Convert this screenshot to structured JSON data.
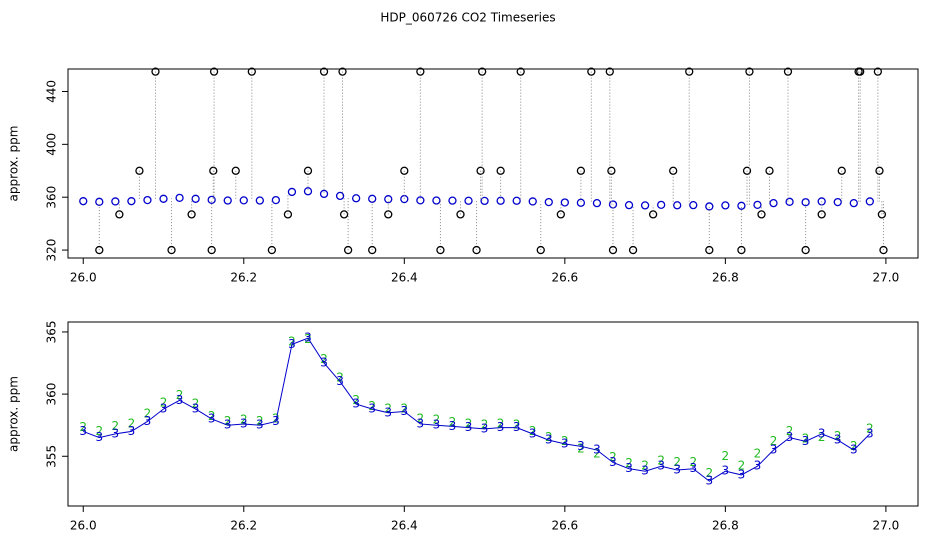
{
  "chart_data": [
    {
      "type": "scatter",
      "title": "HDP_060726  CO2 Timeseries",
      "ylabel": "approx. ppm",
      "xlim": [
        25.981,
        27.04
      ],
      "ylim": [
        314,
        457
      ],
      "xticks": [
        {
          "value": 26.0,
          "label": "26.0"
        },
        {
          "value": 26.2,
          "label": "26.2"
        },
        {
          "value": 26.4,
          "label": "26.4"
        },
        {
          "value": 26.6,
          "label": "26.6"
        },
        {
          "value": 26.8,
          "label": "26.8"
        },
        {
          "value": 27.0,
          "label": "27.0"
        }
      ],
      "yticks": [
        320,
        360,
        400,
        440
      ],
      "series": [
        {
          "color": "#0000cc",
          "marker": "circle",
          "x": [
            26.0,
            26.02,
            26.04,
            26.06,
            26.08,
            26.1,
            26.12,
            26.14,
            26.16,
            26.18,
            26.2,
            26.22,
            26.24,
            26.26,
            26.28,
            26.3,
            26.32,
            26.34,
            26.36,
            26.38,
            26.4,
            26.42,
            26.44,
            26.46,
            26.48,
            26.5,
            26.52,
            26.54,
            26.56,
            26.58,
            26.6,
            26.62,
            26.64,
            26.66,
            26.68,
            26.7,
            26.72,
            26.74,
            26.76,
            26.78,
            26.8,
            26.82,
            26.84,
            26.86,
            26.88,
            26.9,
            26.92,
            26.94,
            26.96,
            26.98
          ],
          "values": [
            357,
            356.5,
            356.8,
            357,
            357.8,
            358.8,
            359.5,
            358.8,
            358,
            357.5,
            357.6,
            357.5,
            357.8,
            364,
            364.5,
            362.5,
            361,
            359.2,
            358.8,
            358.5,
            358.6,
            357.6,
            357.5,
            357.4,
            357.3,
            357.2,
            357.3,
            357.3,
            356.8,
            356.3,
            356,
            355.8,
            355.5,
            354.5,
            354,
            353.8,
            354.2,
            353.9,
            354,
            353,
            353.8,
            353.5,
            354.2,
            355.5,
            356.5,
            356.2,
            356.8,
            356.3,
            355.5,
            356.8
          ]
        },
        {
          "color": "#000000",
          "marker": "circle",
          "drop_lines": "#888888",
          "x": [
            26.02,
            26.045,
            26.07,
            26.09,
            26.11,
            26.135,
            26.16,
            26.162,
            26.163,
            26.19,
            26.21,
            26.235,
            26.255,
            26.28,
            26.3,
            26.323,
            26.325,
            26.33,
            26.36,
            26.38,
            26.4,
            26.42,
            26.445,
            26.47,
            26.49,
            26.495,
            26.497,
            26.52,
            26.545,
            26.57,
            26.595,
            26.62,
            26.633,
            26.656,
            26.658,
            26.66,
            26.685,
            26.71,
            26.735,
            26.755,
            26.78,
            26.82,
            26.827,
            26.83,
            26.845,
            26.855,
            26.878,
            26.9,
            26.92,
            26.945,
            26.966,
            26.968,
            26.99,
            26.992,
            26.995,
            26.997
          ],
          "values": [
            320,
            347,
            380,
            455,
            320,
            347,
            320,
            380,
            455,
            380,
            455,
            320,
            347,
            380,
            455,
            455,
            347,
            320,
            320,
            347,
            380,
            455,
            320,
            347,
            320,
            380,
            455,
            380,
            455,
            320,
            347,
            380,
            455,
            455,
            380,
            320,
            320,
            347,
            380,
            455,
            320,
            320,
            380,
            455,
            347,
            380,
            455,
            320,
            347,
            380,
            455,
            455,
            455,
            380,
            347,
            320
          ]
        }
      ]
    },
    {
      "type": "scatter",
      "ylabel": "approx. ppm",
      "xlim": [
        25.981,
        27.04
      ],
      "ylim": [
        351,
        365.8
      ],
      "xticks": [
        {
          "value": 26.0,
          "label": "26.0"
        },
        {
          "value": 26.2,
          "label": "26.2"
        },
        {
          "value": 26.4,
          "label": "26.4"
        },
        {
          "value": 26.6,
          "label": "26.6"
        },
        {
          "value": 26.8,
          "label": "26.8"
        },
        {
          "value": 27.0,
          "label": "27.0"
        }
      ],
      "yticks": [
        355,
        360,
        365
      ],
      "series": [
        {
          "color": "#22bb22",
          "marker": "2",
          "x": [
            26.0,
            26.02,
            26.04,
            26.06,
            26.08,
            26.1,
            26.12,
            26.14,
            26.16,
            26.18,
            26.2,
            26.22,
            26.24,
            26.26,
            26.28,
            26.3,
            26.32,
            26.34,
            26.36,
            26.38,
            26.4,
            26.42,
            26.44,
            26.46,
            26.48,
            26.5,
            26.52,
            26.54,
            26.56,
            26.58,
            26.6,
            26.62,
            26.64,
            26.66,
            26.68,
            26.7,
            26.72,
            26.74,
            26.76,
            26.78,
            26.8,
            26.82,
            26.84,
            26.86,
            26.88,
            26.9,
            26.92,
            26.94,
            26.96,
            26.98
          ],
          "values": [
            357.3,
            357,
            357.4,
            357.6,
            358.4,
            359.3,
            359.9,
            359.2,
            358.2,
            357.8,
            357.9,
            357.8,
            358,
            364.2,
            364.4,
            362.8,
            361.3,
            359.5,
            359,
            358.8,
            358.8,
            358,
            357.9,
            357.7,
            357.6,
            357.5,
            357.6,
            357.5,
            357,
            356.5,
            356.2,
            355.6,
            355.2,
            354.9,
            354.4,
            354.2,
            354.6,
            354.5,
            354.5,
            353.6,
            355,
            354.2,
            355.2,
            356.2,
            357,
            356.4,
            356.5,
            356.6,
            355.8,
            357.2
          ]
        },
        {
          "color": "#0000cc",
          "marker": "3",
          "line": true,
          "x": [
            26.0,
            26.02,
            26.04,
            26.06,
            26.08,
            26.1,
            26.12,
            26.14,
            26.16,
            26.18,
            26.2,
            26.22,
            26.24,
            26.26,
            26.28,
            26.3,
            26.32,
            26.34,
            26.36,
            26.38,
            26.4,
            26.42,
            26.44,
            26.46,
            26.48,
            26.5,
            26.52,
            26.54,
            26.56,
            26.58,
            26.6,
            26.62,
            26.64,
            26.66,
            26.68,
            26.7,
            26.72,
            26.74,
            26.76,
            26.78,
            26.8,
            26.82,
            26.84,
            26.86,
            26.88,
            26.9,
            26.92,
            26.94,
            26.96,
            26.98
          ],
          "values": [
            357,
            356.5,
            356.8,
            357,
            357.8,
            358.8,
            359.5,
            358.8,
            358,
            357.5,
            357.6,
            357.5,
            357.8,
            364,
            364.5,
            362.5,
            361,
            359.2,
            358.8,
            358.5,
            358.6,
            357.6,
            357.5,
            357.4,
            357.3,
            357.2,
            357.3,
            357.3,
            356.8,
            356.3,
            356,
            355.8,
            355.5,
            354.5,
            354,
            353.8,
            354.2,
            353.9,
            354,
            353,
            353.8,
            353.5,
            354.2,
            355.5,
            356.5,
            356.2,
            356.8,
            356.3,
            355.5,
            356.8
          ]
        }
      ]
    }
  ]
}
